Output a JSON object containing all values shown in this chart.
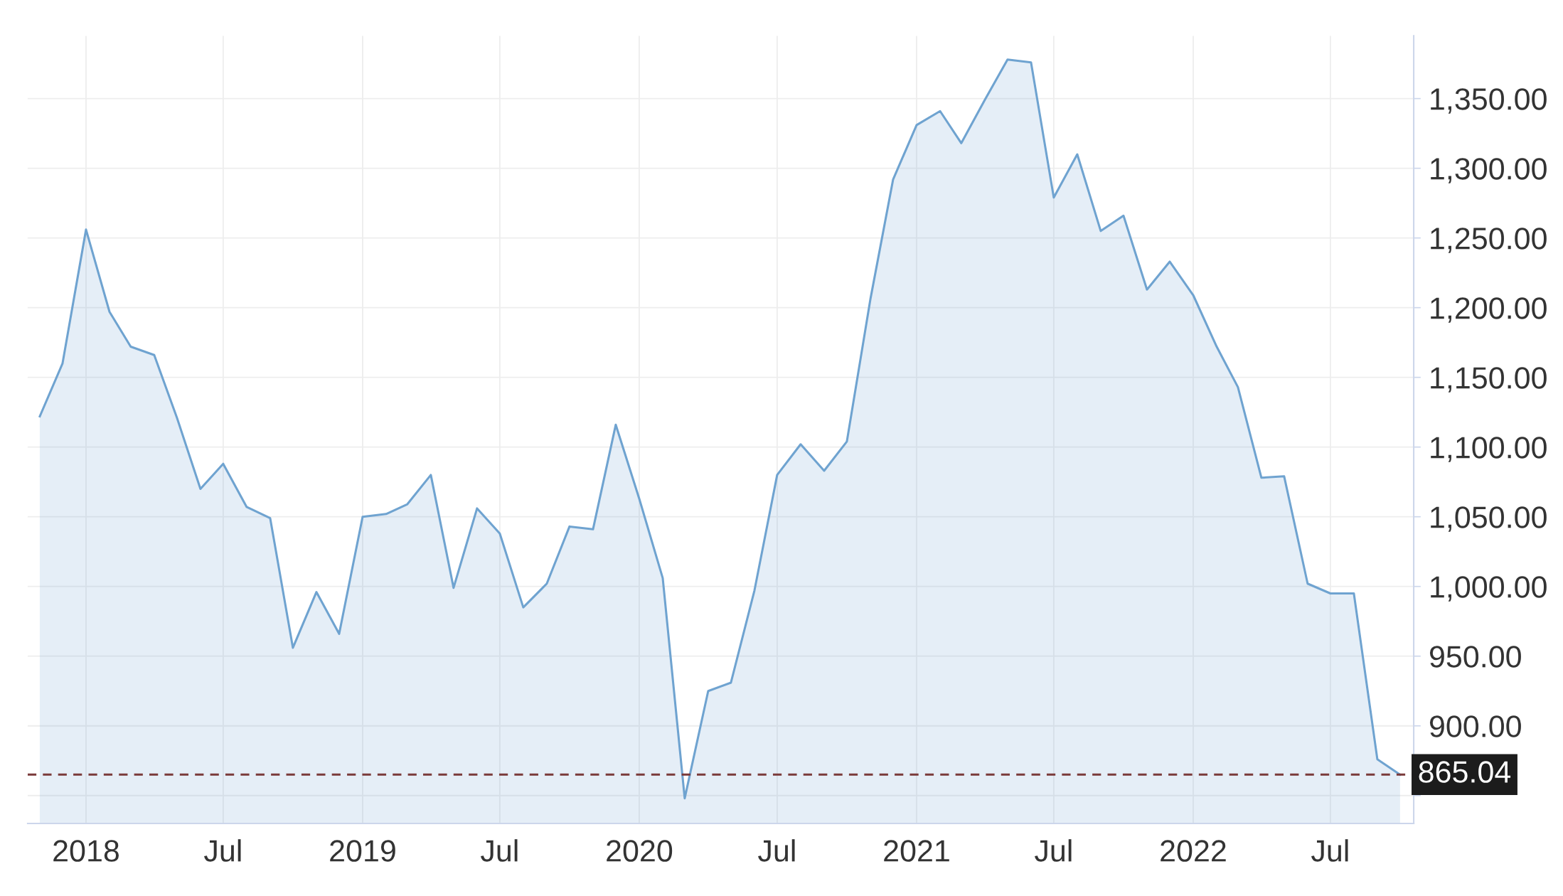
{
  "chart_data": {
    "type": "area",
    "x": [
      "2017-11",
      "2017-12",
      "2018-01",
      "2018-02",
      "2018-03",
      "2018-04",
      "2018-05",
      "2018-06",
      "2018-07",
      "2018-08",
      "2018-09",
      "2018-10",
      "2018-11",
      "2018-12",
      "2019-01",
      "2019-02",
      "2019-03",
      "2019-04",
      "2019-05",
      "2019-06",
      "2019-07",
      "2019-08",
      "2019-09",
      "2019-10",
      "2019-11",
      "2019-12",
      "2020-01",
      "2020-02",
      "2020-03",
      "2020-04",
      "2020-05",
      "2020-06",
      "2020-07",
      "2020-08",
      "2020-09",
      "2020-10",
      "2020-11",
      "2020-12",
      "2021-01",
      "2021-02",
      "2021-03",
      "2021-04",
      "2021-05",
      "2021-06",
      "2021-07",
      "2021-08",
      "2021-09",
      "2021-10",
      "2021-11",
      "2021-12",
      "2022-01",
      "2022-02",
      "2022-03",
      "2022-04",
      "2022-05",
      "2022-06",
      "2022-07",
      "2022-08",
      "2022-09",
      "2022-10"
    ],
    "values": [
      1122,
      1160,
      1256,
      1197,
      1172,
      1166,
      1121,
      1070,
      1088,
      1057,
      1049,
      956,
      996,
      966,
      1050,
      1052,
      1059,
      1080,
      999,
      1056,
      1038,
      985,
      1002,
      1043,
      1041,
      1116,
      1063,
      1006,
      848,
      925,
      931,
      997,
      1080,
      1102,
      1083,
      1104,
      1206,
      1292,
      1331,
      1341,
      1318,
      1349,
      1378,
      1376,
      1279,
      1310,
      1255,
      1266,
      1213,
      1233,
      1209,
      1172,
      1143,
      1078,
      1079,
      1002,
      995,
      995,
      876,
      865
    ],
    "color": "#6fa3d0",
    "xlim": [
      "2017-10-16",
      "2022-10-19"
    ],
    "xticks": [
      {
        "value": "2018-01",
        "label": "2018"
      },
      {
        "value": "2018-07",
        "label": "Jul"
      },
      {
        "value": "2019-01",
        "label": "2019"
      },
      {
        "value": "2019-07",
        "label": "Jul"
      },
      {
        "value": "2020-01",
        "label": "2020"
      },
      {
        "value": "2020-07",
        "label": "Jul"
      },
      {
        "value": "2021-01",
        "label": "2021"
      },
      {
        "value": "2021-07",
        "label": "Jul"
      },
      {
        "value": "2022-01",
        "label": "2022"
      },
      {
        "value": "2022-07",
        "label": "Jul"
      }
    ],
    "ylim": [
      830,
      1395
    ],
    "yticks": [
      {
        "value": 850,
        "label": null
      },
      {
        "value": 900,
        "label": "900.00"
      },
      {
        "value": 950,
        "label": "950.00"
      },
      {
        "value": 1000,
        "label": "1,000.00"
      },
      {
        "value": 1050,
        "label": "1,050.00"
      },
      {
        "value": 1100,
        "label": "1,100.00"
      },
      {
        "value": 1150,
        "label": "1,150.00"
      },
      {
        "value": 1200,
        "label": "1,200.00"
      },
      {
        "value": 1250,
        "label": "1,250.00"
      },
      {
        "value": 1300,
        "label": "1,300.00"
      },
      {
        "value": 1350,
        "label": "1,350.00"
      }
    ],
    "ref_lines": [
      {
        "axis": "y",
        "value": 865.04,
        "label": "865.04",
        "color": "#7a3a3a",
        "line_style": "dashed"
      }
    ],
    "grid": true,
    "marker": "none",
    "line_style": "solid"
  }
}
